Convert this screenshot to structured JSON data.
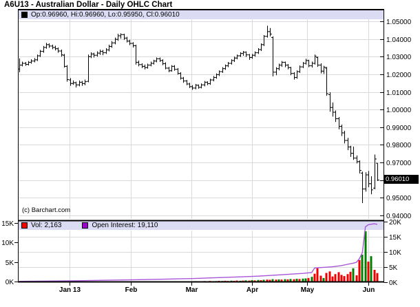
{
  "title": "A6U13 - Australian Dollar - Daily OHLC Chart",
  "price_panel": {
    "legend_text": "Op:0.96960, Hi:0.96960, Lo:0.95950, Cl:0.96010",
    "last_price_label": "0.96010",
    "watermark": "(c) Barchart.com",
    "y_ticks": [
      {
        "label": "1.05000",
        "value": 1.05
      },
      {
        "label": "1.04000",
        "value": 1.04
      },
      {
        "label": "1.03000",
        "value": 1.03
      },
      {
        "label": "1.02000",
        "value": 1.02
      },
      {
        "label": "1.01000",
        "value": 1.01
      },
      {
        "label": "1.00000",
        "value": 1.0
      },
      {
        "label": "0.99000",
        "value": 0.99
      },
      {
        "label": "0.98000",
        "value": 0.98
      },
      {
        "label": "0.97000",
        "value": 0.97
      },
      {
        "label": "0.95000",
        "value": 0.95
      },
      {
        "label": "0.94000",
        "value": 0.94
      }
    ],
    "gridline_values": [
      1.05,
      1.04,
      1.03,
      1.02,
      1.01,
      1.0,
      0.99,
      0.98,
      0.97,
      0.96,
      0.95,
      0.94
    ]
  },
  "volume_panel": {
    "vol_label": "Vol: 2,163",
    "oi_label": "Open Interest: 19,110",
    "left_ticks": [
      {
        "label": "15K",
        "value": 15
      },
      {
        "label": "10K",
        "value": 10
      },
      {
        "label": "5K",
        "value": 5
      },
      {
        "label": "0K",
        "value": 0
      }
    ],
    "right_ticks": [
      {
        "label": "20K",
        "value": 20
      },
      {
        "label": "15K",
        "value": 15
      },
      {
        "label": "10K",
        "value": 10
      },
      {
        "label": "5K",
        "value": 5
      },
      {
        "label": "0K",
        "value": 0
      }
    ]
  },
  "x_axis": {
    "labels": [
      "Jan 13",
      "Feb",
      "Mar",
      "Apr",
      "May",
      "Jun"
    ],
    "x_positions": [
      101,
      190,
      278,
      366,
      446,
      535
    ]
  },
  "colors": {
    "up_volume": "#008000",
    "down_volume": "#ee0000",
    "open_interest_line": "#a855d8",
    "oi_swatch": "#9900cc",
    "legend_strip": "#dbdbf4",
    "grid": "#d9d9d9",
    "bar": "#000000",
    "last_price_bg": "#000000"
  },
  "chart_data": {
    "type": "ohlc+volume",
    "title": "A6U13 - Australian Dollar - Daily OHLC Chart",
    "x_months": [
      "Jan 13",
      "Feb",
      "Mar",
      "Apr",
      "May",
      "Jun"
    ],
    "price": {
      "ylim": [
        0.94,
        1.05
      ],
      "tick_step": 0.01,
      "last": {
        "open": 0.9696,
        "high": 0.9696,
        "low": 0.9595,
        "close": 0.9601
      },
      "bars": [
        [
          1.023,
          1.029,
          1.0212,
          1.0252
        ],
        [
          1.0252,
          1.0272,
          1.0245,
          1.0262
        ],
        [
          1.0262,
          1.027,
          1.0248,
          1.0256
        ],
        [
          1.0256,
          1.0275,
          1.025,
          1.0268
        ],
        [
          1.0268,
          1.0285,
          1.026,
          1.0275
        ],
        [
          1.0275,
          1.0292,
          1.0268,
          1.0282
        ],
        [
          1.0282,
          1.0312,
          1.0275,
          1.0305
        ],
        [
          1.0305,
          1.0338,
          1.0298,
          1.033
        ],
        [
          1.033,
          1.036,
          1.0322,
          1.0352
        ],
        [
          1.0352,
          1.0378,
          1.0345,
          1.0368
        ],
        [
          1.0368,
          1.0375,
          1.035,
          1.036
        ],
        [
          1.036,
          1.0368,
          1.0342,
          1.0352
        ],
        [
          1.0352,
          1.0362,
          1.0335,
          1.0345
        ],
        [
          1.0345,
          1.0352,
          1.0322,
          1.0332
        ],
        [
          1.0332,
          1.034,
          1.03,
          1.031
        ],
        [
          1.0308,
          1.0315,
          1.0238,
          1.0245
        ],
        [
          1.0245,
          1.0252,
          1.0158,
          1.017
        ],
        [
          1.0168,
          1.0178,
          1.0135,
          1.0148
        ],
        [
          1.0148,
          1.0165,
          1.014,
          1.0152
        ],
        [
          1.0152,
          1.0158,
          1.0125,
          1.014
        ],
        [
          1.014,
          1.0165,
          1.0132,
          1.0155
        ],
        [
          1.0155,
          1.0162,
          1.0135,
          1.0147
        ],
        [
          1.0147,
          1.017,
          1.0138,
          1.0158
        ],
        [
          1.016,
          1.0312,
          1.0155,
          1.03
        ],
        [
          1.03,
          1.0325,
          1.0292,
          1.0315
        ],
        [
          1.0315,
          1.0322,
          1.0295,
          1.0308
        ],
        [
          1.0308,
          1.033,
          1.03,
          1.032
        ],
        [
          1.032,
          1.034,
          1.031,
          1.033
        ],
        [
          1.033,
          1.0338,
          1.0308,
          1.0322
        ],
        [
          1.0322,
          1.0348,
          1.0315,
          1.0338
        ],
        [
          1.0338,
          1.0368,
          1.033,
          1.0358
        ],
        [
          1.0358,
          1.0388,
          1.035,
          1.0378
        ],
        [
          1.0378,
          1.0408,
          1.037,
          1.0398
        ],
        [
          1.0398,
          1.043,
          1.039,
          1.0418
        ],
        [
          1.0418,
          1.0432,
          1.0402,
          1.0425
        ],
        [
          1.0425,
          1.043,
          1.0395,
          1.0405
        ],
        [
          1.0405,
          1.0412,
          1.038,
          1.0388
        ],
        [
          1.0388,
          1.0395,
          1.0365,
          1.0375
        ],
        [
          1.0375,
          1.0382,
          1.0352,
          1.0362
        ],
        [
          1.0362,
          1.0368,
          1.0255,
          1.0268
        ],
        [
          1.0268,
          1.0278,
          1.0245,
          1.0255
        ],
        [
          1.0255,
          1.0262,
          1.0235,
          1.0245
        ],
        [
          1.0245,
          1.0255,
          1.0228,
          1.0238
        ],
        [
          1.0238,
          1.026,
          1.0232,
          1.0252
        ],
        [
          1.0252,
          1.0272,
          1.0245,
          1.0262
        ],
        [
          1.0262,
          1.0282,
          1.0255,
          1.0275
        ],
        [
          1.0275,
          1.0295,
          1.0268,
          1.0288
        ],
        [
          1.0288,
          1.0295,
          1.027,
          1.0278
        ],
        [
          1.0278,
          1.0285,
          1.0252,
          1.026
        ],
        [
          1.026,
          1.0268,
          1.0228,
          1.0235
        ],
        [
          1.0235,
          1.0242,
          1.0212,
          1.022
        ],
        [
          1.022,
          1.0252,
          1.0215,
          1.0245
        ],
        [
          1.0245,
          1.0252,
          1.022,
          1.0228
        ],
        [
          1.0228,
          1.0235,
          1.0198,
          1.0205
        ],
        [
          1.0205,
          1.0212,
          1.017,
          1.0178
        ],
        [
          1.0178,
          1.0185,
          1.0152,
          1.0162
        ],
        [
          1.0162,
          1.0168,
          1.0138,
          1.0145
        ],
        [
          1.0145,
          1.0152,
          1.0122,
          1.013
        ],
        [
          1.013,
          1.0138,
          1.0112,
          1.0122
        ],
        [
          1.0122,
          1.0145,
          1.0115,
          1.0138
        ],
        [
          1.0138,
          1.0142,
          1.0118,
          1.0126
        ],
        [
          1.0126,
          1.0148,
          1.012,
          1.014
        ],
        [
          1.014,
          1.0162,
          1.0132,
          1.0155
        ],
        [
          1.0155,
          1.016,
          1.0138,
          1.0147
        ],
        [
          1.0147,
          1.0175,
          1.014,
          1.0168
        ],
        [
          1.0168,
          1.019,
          1.016,
          1.0182
        ],
        [
          1.0182,
          1.0205,
          1.0175,
          1.0198
        ],
        [
          1.0198,
          1.0222,
          1.019,
          1.0215
        ],
        [
          1.0215,
          1.024,
          1.0208,
          1.0232
        ],
        [
          1.0232,
          1.0255,
          1.0225,
          1.0248
        ],
        [
          1.0248,
          1.027,
          1.024,
          1.0262
        ],
        [
          1.0262,
          1.0285,
          1.0255,
          1.0278
        ],
        [
          1.0278,
          1.03,
          1.027,
          1.0292
        ],
        [
          1.0292,
          1.0312,
          1.0285,
          1.0305
        ],
        [
          1.0305,
          1.0325,
          1.0298,
          1.0318
        ],
        [
          1.0318,
          1.0332,
          1.0305,
          1.0325
        ],
        [
          1.0325,
          1.033,
          1.0298,
          1.031
        ],
        [
          1.031,
          1.0315,
          1.0282,
          1.0295
        ],
        [
          1.0295,
          1.0315,
          1.0288,
          1.0308
        ],
        [
          1.0308,
          1.033,
          1.03,
          1.0322
        ],
        [
          1.0322,
          1.0348,
          1.0315,
          1.034
        ],
        [
          1.034,
          1.0375,
          1.0332,
          1.0368
        ],
        [
          1.0368,
          1.0422,
          1.036,
          1.0415
        ],
        [
          1.0415,
          1.0475,
          1.0408,
          1.0442
        ],
        [
          1.0442,
          1.0462,
          1.0415,
          1.0428
        ],
        [
          1.0408,
          1.0415,
          1.0188,
          1.0212
        ],
        [
          1.0212,
          1.024,
          1.0195,
          1.0232
        ],
        [
          1.0232,
          1.026,
          1.0222,
          1.0252
        ],
        [
          1.0252,
          1.0275,
          1.0242,
          1.0268
        ],
        [
          1.0268,
          1.0272,
          1.024,
          1.0252
        ],
        [
          1.0252,
          1.0258,
          1.0228,
          1.0238
        ],
        [
          1.0238,
          1.0242,
          1.0195,
          1.0205
        ],
        [
          1.0205,
          1.0212,
          1.017,
          1.0182
        ],
        [
          1.0182,
          1.0222,
          1.0175,
          1.0215
        ],
        [
          1.0215,
          1.025,
          1.0208,
          1.0242
        ],
        [
          1.0242,
          1.027,
          1.0235,
          1.0262
        ],
        [
          1.0262,
          1.0288,
          1.0255,
          1.0278
        ],
        [
          1.0278,
          1.0282,
          1.024,
          1.0248
        ],
        [
          1.0248,
          1.0272,
          1.0238,
          1.0262
        ],
        [
          1.0262,
          1.0312,
          1.0255,
          1.0302
        ],
        [
          1.0295,
          1.03,
          1.0242,
          1.0252
        ],
        [
          1.0252,
          1.0262,
          1.0205,
          1.0218
        ],
        [
          1.0218,
          1.0248,
          1.0202,
          1.024
        ],
        [
          1.0235,
          1.0242,
          1.0078,
          1.009
        ],
        [
          1.0085,
          1.0098,
          0.9988,
          1.0012
        ],
        [
          1.0012,
          1.004,
          0.996,
          0.9985
        ],
        [
          0.9985,
          0.9995,
          0.993,
          0.9948
        ],
        [
          0.9948,
          0.9958,
          0.9888,
          0.9905
        ],
        [
          0.9905,
          0.9915,
          0.985,
          0.9868
        ],
        [
          0.9868,
          0.988,
          0.9808,
          0.9825
        ],
        [
          0.9825,
          0.984,
          0.977,
          0.9788
        ],
        [
          0.9788,
          0.9795,
          0.9732,
          0.9752
        ],
        [
          0.9752,
          0.979,
          0.9715,
          0.9725
        ],
        [
          0.9725,
          0.974,
          0.9695,
          0.9705
        ],
        [
          0.9705,
          0.9712,
          0.9638,
          0.9655
        ],
        [
          0.964,
          0.9648,
          0.947,
          0.955
        ],
        [
          0.955,
          0.9645,
          0.9535,
          0.963
        ],
        [
          0.963,
          0.9652,
          0.956,
          0.958
        ],
        [
          0.958,
          0.9622,
          0.952,
          0.9545
        ],
        [
          0.9555,
          0.9745,
          0.9548,
          0.972
        ],
        [
          0.9696,
          0.9696,
          0.9595,
          0.9601
        ]
      ]
    },
    "volume": {
      "axis": "left",
      "last_value": 2163,
      "start_index": 55,
      "values_k": [
        0.05,
        0,
        0.08,
        0,
        0.1,
        0.05,
        0,
        0.12,
        0.08,
        0.15,
        0.1,
        0.12,
        0.18,
        0.15,
        0.2,
        0.15,
        0.22,
        0.18,
        0.25,
        0.2,
        0.25,
        0.3,
        0.25,
        0.35,
        0.3,
        0.4,
        0.35,
        0.45,
        0.5,
        0.45,
        0.6,
        0.5,
        0.55,
        0.5,
        0.6,
        0.55,
        0.65,
        0.6,
        0.7,
        0.65,
        0.75,
        0.8,
        0.9,
        1.2,
        2.0,
        3.4,
        1.5,
        0.9,
        2.2,
        2.6,
        1.3,
        1.9,
        2.4,
        1.7,
        1.4,
        1.9,
        2.5,
        3.4,
        1.6,
        5.5,
        6.9,
        12.9,
        5.1,
        6.5,
        3.0,
        2.163
      ],
      "colors": [
        "r",
        "r",
        "g",
        "r",
        "r",
        "r",
        "r",
        "r",
        "g",
        "r",
        "r",
        "g",
        "r",
        "g",
        "r",
        "r",
        "g",
        "r",
        "r",
        "g",
        "r",
        "g",
        "r",
        "g",
        "r",
        "g",
        "r",
        "g",
        "r",
        "r",
        "g",
        "r",
        "g",
        "r",
        "g",
        "r",
        "g",
        "r",
        "g",
        "r",
        "g",
        "g",
        "r",
        "g",
        "r",
        "r",
        "r",
        "g",
        "r",
        "r",
        "r",
        "r",
        "r",
        "r",
        "r",
        "r",
        "r",
        "g",
        "r",
        "r",
        "g",
        "g",
        "r",
        "g",
        "r",
        "r"
      ]
    },
    "open_interest": {
      "axis": "right",
      "last_value": 19110,
      "points_k": [
        [
          0,
          0.3
        ],
        [
          12,
          0.4
        ],
        [
          20,
          0.5
        ],
        [
          30,
          0.65
        ],
        [
          40,
          0.85
        ],
        [
          50,
          1.05
        ],
        [
          58,
          1.2
        ],
        [
          66,
          1.5
        ],
        [
          75,
          1.8
        ],
        [
          80,
          2.0
        ],
        [
          85,
          2.3
        ],
        [
          90,
          2.6
        ],
        [
          95,
          2.9
        ],
        [
          98,
          3.2
        ],
        [
          99,
          4.7
        ],
        [
          102,
          4.9
        ],
        [
          105,
          5.1
        ],
        [
          108,
          5.5
        ],
        [
          110,
          5.9
        ],
        [
          112,
          6.3
        ],
        [
          113,
          6.6
        ],
        [
          114,
          7.8
        ],
        [
          115,
          9.8
        ],
        [
          116,
          18.3
        ],
        [
          117,
          19.0
        ],
        [
          118,
          19.15
        ],
        [
          119,
          19.3
        ],
        [
          120,
          19.11
        ]
      ]
    },
    "volume_ylim_left_k": [
      0,
      15
    ],
    "oi_ylim_right_k": [
      0,
      20
    ],
    "legend_position": "top-strip",
    "grid": true
  }
}
